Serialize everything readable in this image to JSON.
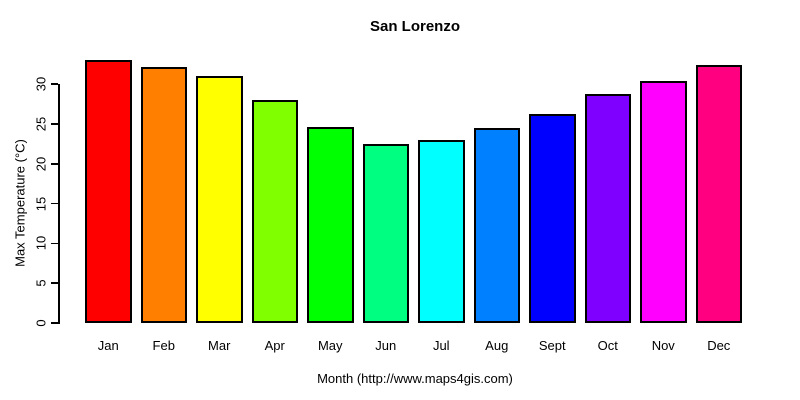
{
  "chart_data": {
    "type": "bar",
    "title": "San Lorenzo",
    "xlabel": "Month (http://www.maps4gis.com)",
    "ylabel": "Max Temperature (°C)",
    "categories": [
      "Jan",
      "Feb",
      "Mar",
      "Apr",
      "May",
      "Jun",
      "Jul",
      "Aug",
      "Sept",
      "Oct",
      "Nov",
      "Dec"
    ],
    "values": [
      33.1,
      32.2,
      31.0,
      28.0,
      24.6,
      22.5,
      23.0,
      24.5,
      26.2,
      28.8,
      30.4,
      32.4
    ],
    "bar_colors": [
      "#FF0000",
      "#FF8000",
      "#FFFF00",
      "#80FF00",
      "#00FF00",
      "#00FF80",
      "#00FFFF",
      "#0080FF",
      "#0000FF",
      "#8000FF",
      "#FF00FF",
      "#FF0080"
    ],
    "bar_border_color": "#000000",
    "axis_color": "#000000",
    "background": "#FFFFFF",
    "ylim": [
      0,
      34
    ],
    "yticks": [
      0,
      5,
      10,
      15,
      20,
      25,
      30
    ],
    "grid": false,
    "legend": null
  }
}
